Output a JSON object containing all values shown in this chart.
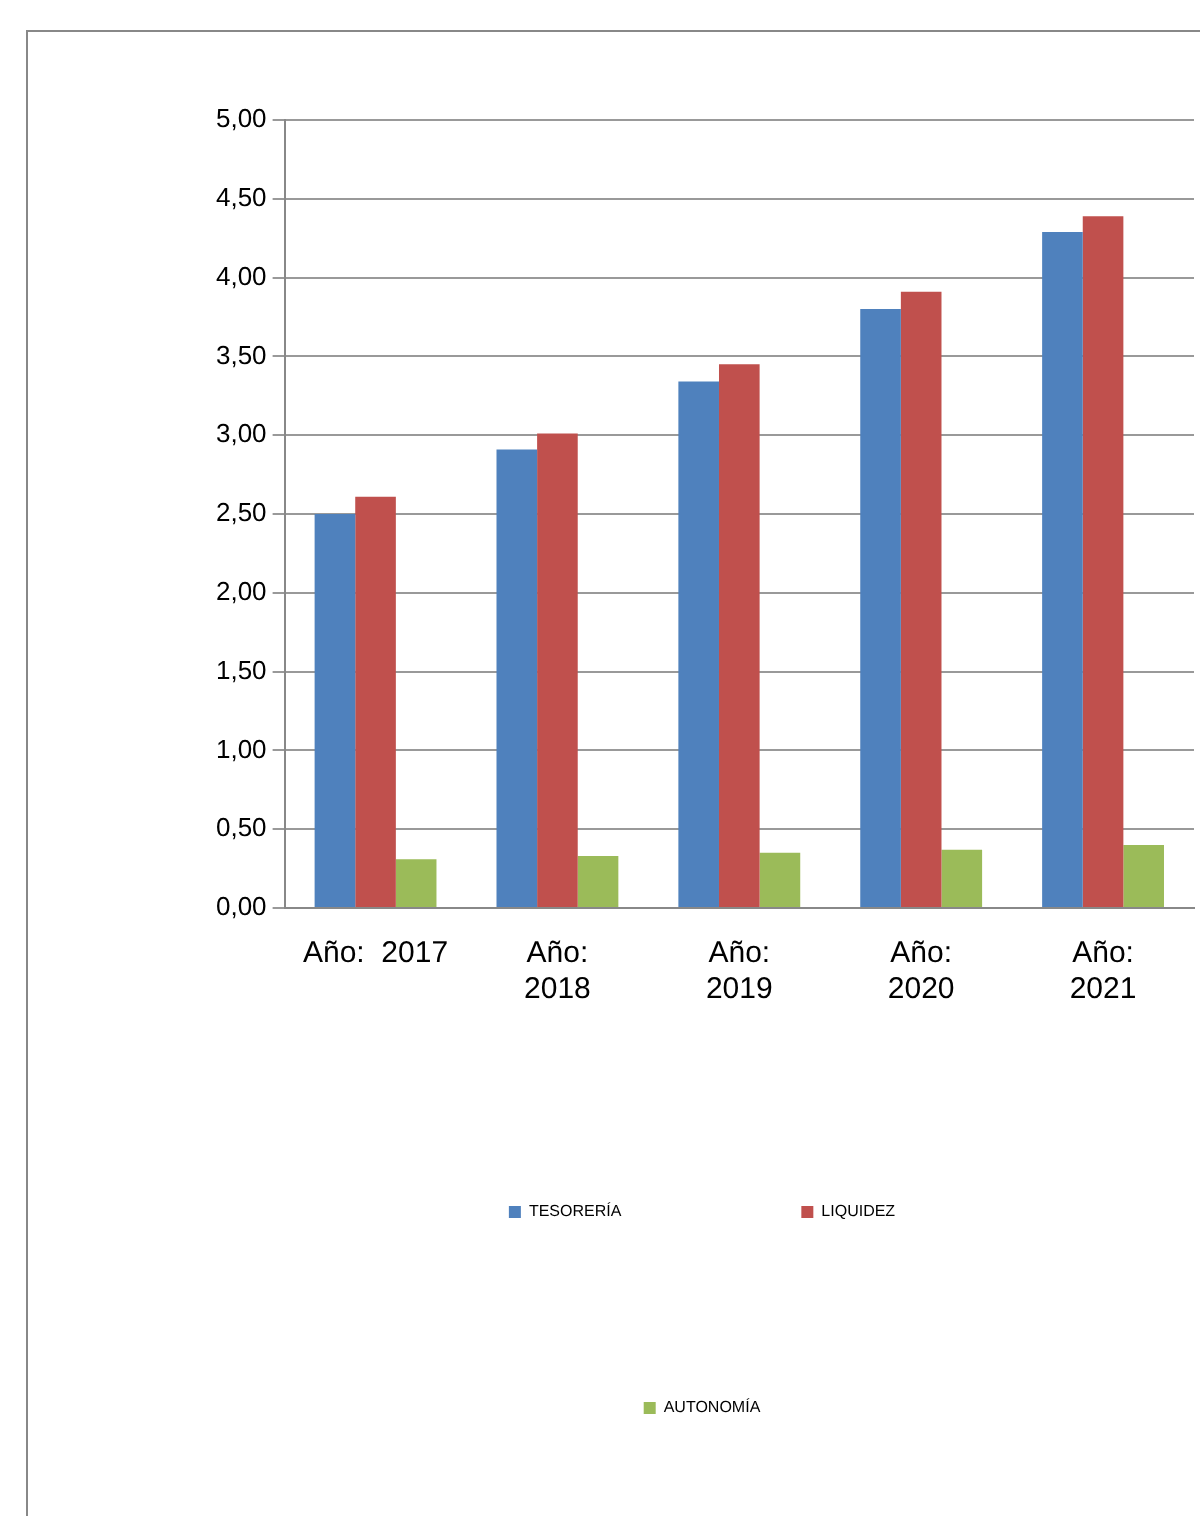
{
  "chart_data": {
    "type": "bar",
    "categories": [
      "Año:  2017",
      "Año:  2018",
      "Año:  2019",
      "Año:  2020",
      "Año:  2021"
    ],
    "series": [
      {
        "name": "TESORERÍA",
        "color": "#4f81bd",
        "values": [
          2.5,
          2.91,
          3.34,
          3.8,
          4.29
        ]
      },
      {
        "name": "LIQUIDEZ",
        "color": "#c0504d",
        "values": [
          2.61,
          3.01,
          3.45,
          3.91,
          4.39
        ]
      },
      {
        "name": "AUTONOMÍA",
        "color": "#9bbb59",
        "values": [
          0.31,
          0.33,
          0.35,
          0.37,
          0.4
        ]
      }
    ],
    "ylim": [
      0,
      5
    ],
    "yticks": [
      {
        "value": 0,
        "label": "0,00"
      },
      {
        "value": 0.5,
        "label": "0,50"
      },
      {
        "value": 1,
        "label": "1,00"
      },
      {
        "value": 1.5,
        "label": "1,50"
      },
      {
        "value": 2,
        "label": "2,00"
      },
      {
        "value": 2.5,
        "label": "2,50"
      },
      {
        "value": 3,
        "label": "3,00"
      },
      {
        "value": 3.5,
        "label": "3,50"
      },
      {
        "value": 4,
        "label": "4,00"
      },
      {
        "value": 4.5,
        "label": "4,50"
      },
      {
        "value": 5,
        "label": "5,00"
      }
    ],
    "grid": "y",
    "legend": "bottom"
  }
}
